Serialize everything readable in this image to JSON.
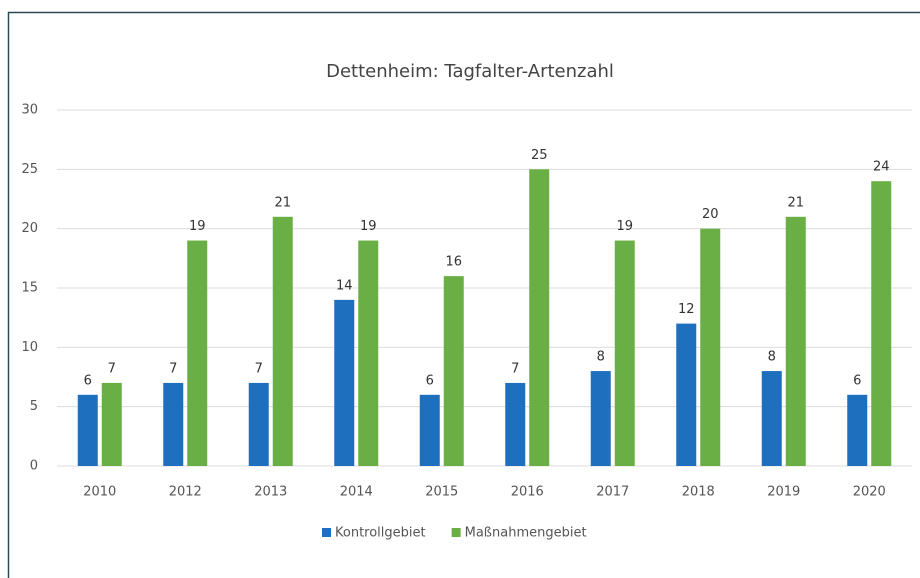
{
  "chart_data": {
    "type": "bar",
    "title": "Dettenheim: Tagfalter-Artenzahl",
    "categories": [
      "2010",
      "2012",
      "2013",
      "2014",
      "2015",
      "2016",
      "2017",
      "2018",
      "2019",
      "2020"
    ],
    "series": [
      {
        "name": "Kontrollgebiet",
        "color": "#1f6fbf",
        "values": [
          6,
          7,
          7,
          14,
          6,
          7,
          8,
          12,
          8,
          6
        ]
      },
      {
        "name": "Maßnahmengebiet",
        "color": "#6aaf45",
        "values": [
          7,
          19,
          21,
          19,
          16,
          25,
          19,
          20,
          21,
          24
        ]
      }
    ],
    "ylim": [
      0,
      30
    ],
    "yticks": [
      0,
      5,
      10,
      15,
      20,
      25,
      30
    ],
    "grid": true,
    "legend": "bottom"
  }
}
